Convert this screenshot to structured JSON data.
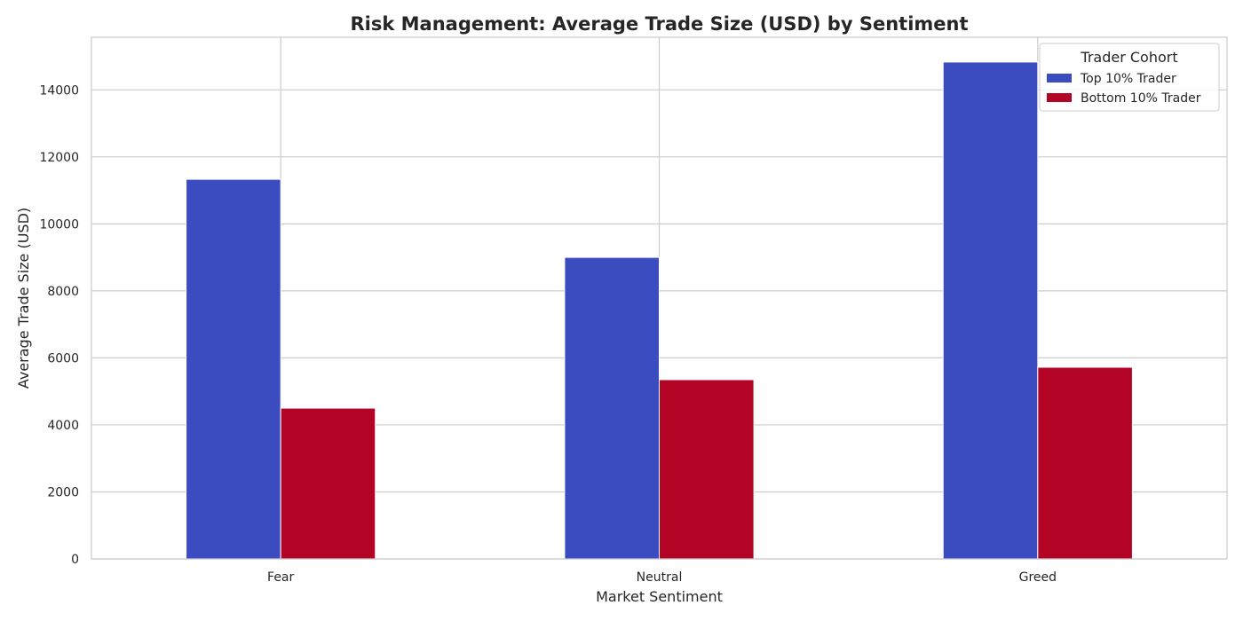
{
  "chart_data": {
    "type": "bar",
    "title": "Risk Management: Average Trade Size (USD) by Sentiment",
    "xlabel": "Market Sentiment",
    "ylabel": "Average Trade Size (USD)",
    "categories": [
      "Fear",
      "Neutral",
      "Greed"
    ],
    "series": [
      {
        "name": "Top 10% Trader",
        "color": "#3b4cc0",
        "values": [
          11330,
          9000,
          14830
        ]
      },
      {
        "name": "Bottom 10% Trader",
        "color": "#b40426",
        "values": [
          4500,
          5350,
          5720
        ]
      }
    ],
    "ylim": [
      0,
      15570
    ],
    "yticks": [
      0,
      2000,
      4000,
      6000,
      8000,
      10000,
      12000,
      14000
    ],
    "grid": true,
    "legend": {
      "title": "Trader Cohort",
      "placement": "top-right"
    }
  }
}
